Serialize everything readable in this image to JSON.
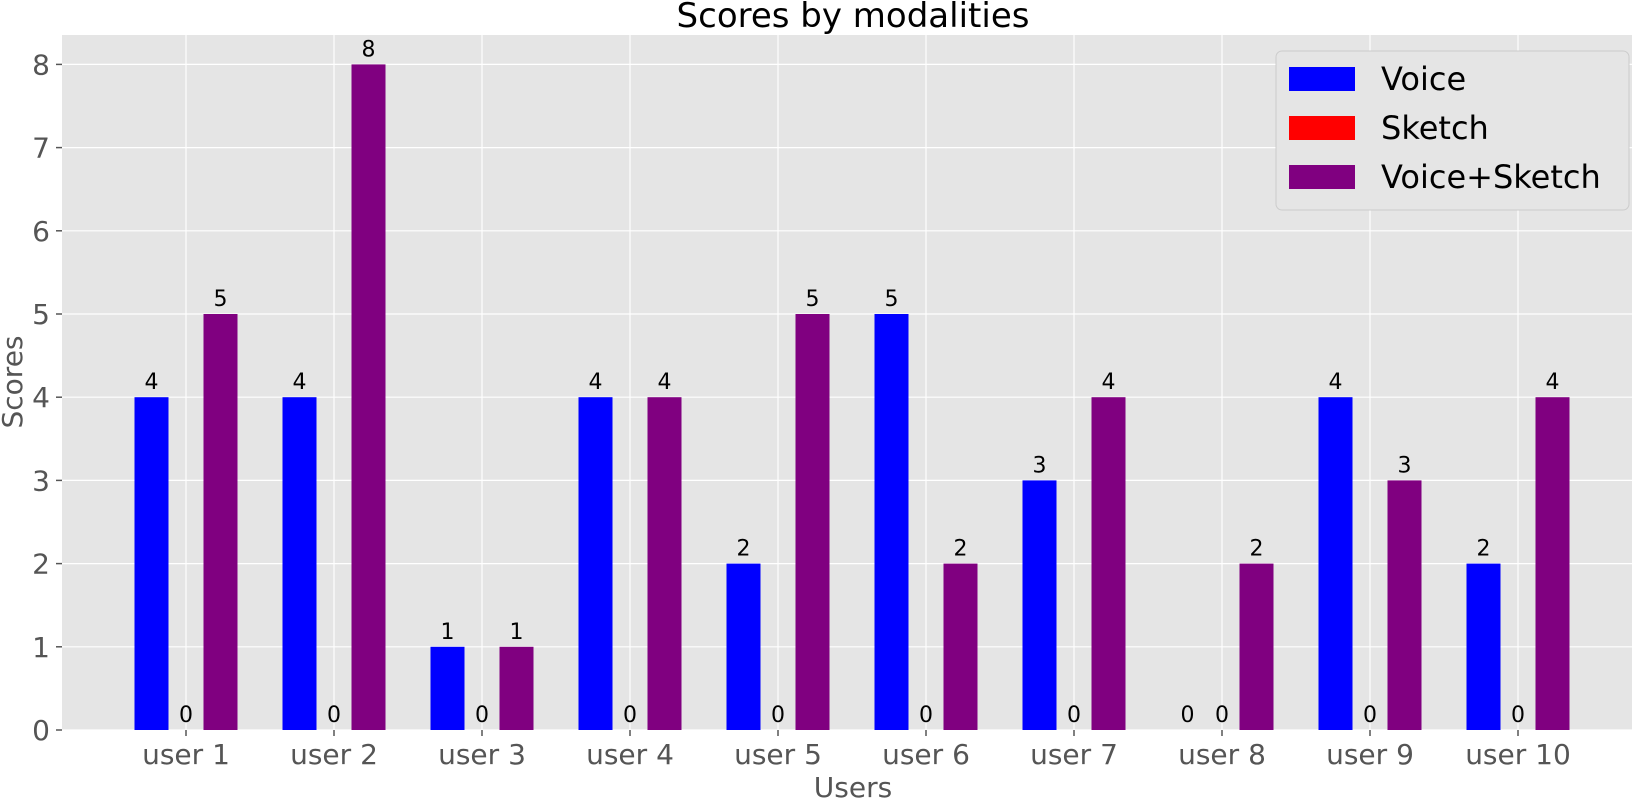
{
  "chart_data": {
    "type": "bar",
    "title": "Scores by modalities",
    "xlabel": "Users",
    "ylabel": "Scores",
    "categories": [
      "user 1",
      "user 2",
      "user 3",
      "user 4",
      "user 5",
      "user 6",
      "user 7",
      "user 8",
      "user 9",
      "user 10"
    ],
    "series": [
      {
        "name": "Voice",
        "color": "#0000ff",
        "values": [
          4,
          4,
          1,
          4,
          2,
          5,
          3,
          0,
          4,
          2
        ]
      },
      {
        "name": "Sketch",
        "color": "#ff0000",
        "values": [
          0,
          0,
          0,
          0,
          0,
          0,
          0,
          0,
          0,
          0
        ]
      },
      {
        "name": "Voice+Sketch",
        "color": "#800080",
        "values": [
          5,
          8,
          1,
          4,
          5,
          2,
          4,
          2,
          3,
          4
        ]
      }
    ],
    "ylim": [
      0,
      8.4
    ],
    "yticks": [
      0,
      1,
      2,
      3,
      4,
      5,
      6,
      7,
      8
    ],
    "grid": true,
    "legend_position": "top-right",
    "background": "#e5e5e5"
  }
}
